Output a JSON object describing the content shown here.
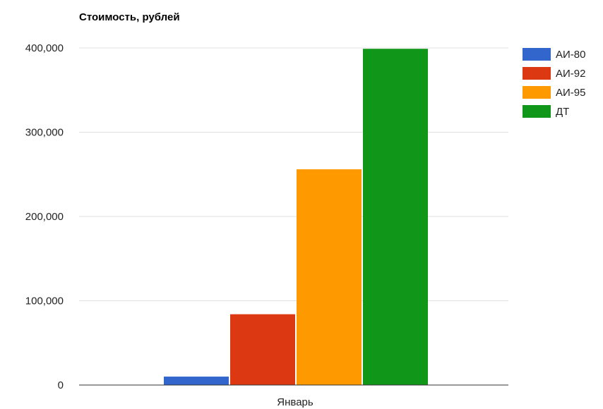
{
  "chart_data": {
    "type": "bar",
    "title": "Стоимость, рублей",
    "xlabel": "",
    "ylabel": "",
    "categories": [
      "Январь"
    ],
    "series": [
      {
        "name": "АИ-80",
        "values": [
          10000
        ],
        "color": "#3366cc"
      },
      {
        "name": "АИ-92",
        "values": [
          84000
        ],
        "color": "#dc3912"
      },
      {
        "name": "АИ-95",
        "values": [
          256000
        ],
        "color": "#ff9900"
      },
      {
        "name": "ДТ",
        "values": [
          399000
        ],
        "color": "#109618"
      }
    ],
    "ylim": [
      0,
      400000
    ],
    "yticks": [
      0,
      100000,
      200000,
      300000,
      400000
    ],
    "ytick_labels": [
      "0",
      "100,000",
      "200,000",
      "300,000",
      "400,000"
    ],
    "grid": true,
    "legend_position": "right"
  }
}
